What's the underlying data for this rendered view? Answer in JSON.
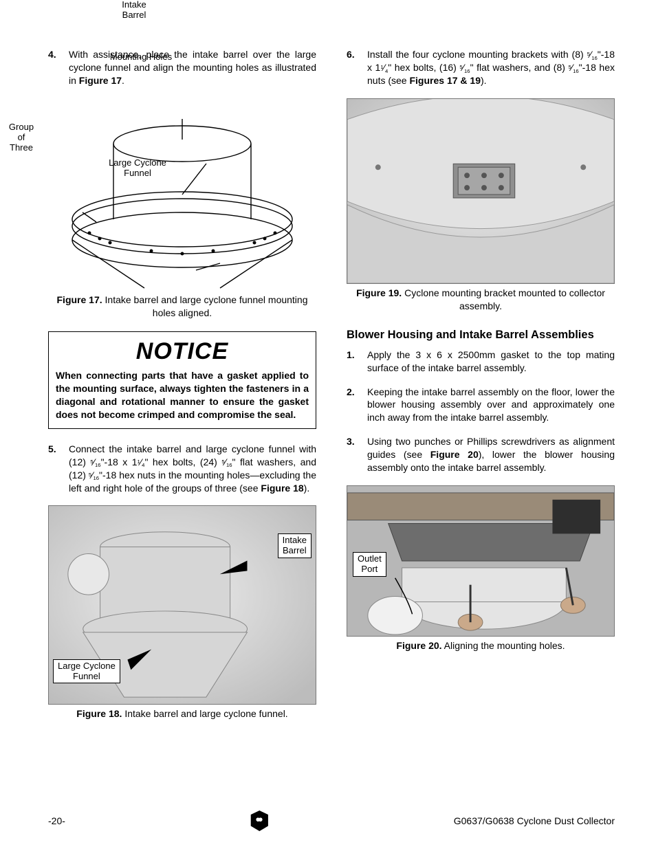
{
  "left": {
    "step4": {
      "num": "4.",
      "text_before": "With assistance, place the intake barrel over the large cyclone funnel and align the mounting holes as illustrated in ",
      "ref": "Figure 17",
      "text_after": "."
    },
    "fig17": {
      "labels": {
        "intake_barrel": "Intake\nBarrel",
        "mounting_holes": "Mounting Holes",
        "group_of_three": "Group\nof\nThree",
        "large_cyclone_funnel": "Large Cyclone\nFunnel"
      },
      "caption_bold": "Figure 17.",
      "caption_rest": " Intake barrel and large cyclone funnel mounting holes aligned."
    },
    "notice": {
      "title": "NOTICE",
      "body": "When connecting parts that have a gasket applied to the mounting surface, always tighten the fasteners in a diagonal and rotational manner to ensure the gasket does not become crimped and compromise the seal."
    },
    "step5": {
      "num": "5.",
      "html": "Connect the intake barrel and large cyclone funnel with (12) <span class='sup'>5</span>⁄<span class='sub'>16</span>\"-18 x 1<span class='sup'>1</span>⁄<span class='sub'>4</span>\" hex bolts, (24) <span class='sup'>5</span>⁄<span class='sub'>16</span>\" flat washers, and (12) <span class='sup'>5</span>⁄<span class='sub'>16</span>\"-18 hex nuts in the mounting holes—excluding the left and right hole of the groups of three (see <span class='bold'>Figure 18</span>)."
    },
    "fig18": {
      "labels": {
        "intake_barrel": "Intake\nBarrel",
        "large_cyclone_funnel": "Large Cyclone\nFunnel"
      },
      "caption_bold": "Figure 18.",
      "caption_rest": " Intake barrel and large cyclone funnel."
    }
  },
  "right": {
    "step6": {
      "num": "6.",
      "html": "Install the four cyclone mounting brackets with (8) <span class='sup'>5</span>⁄<span class='sub'>16</span>\"-18 x 1<span class='sup'>1</span>⁄<span class='sub'>4</span>\" hex bolts, (16) <span class='sup'>5</span>⁄<span class='sub'>16</span>\" flat washers, and (8) <span class='sup'>5</span>⁄<span class='sub'>16</span>\"-18 hex nuts (see <span class='bold'>Figures 17 &amp; 19</span>)."
    },
    "fig19": {
      "caption_bold": "Figure 19.",
      "caption_rest": " Cyclone mounting bracket mounted to collector assembly."
    },
    "heading": "Blower Housing and Intake Barrel Assemblies",
    "step1": {
      "num": "1.",
      "text": "Apply the 3 x 6 x 2500mm gasket to the top mating surface of the intake barrel assembly."
    },
    "step2": {
      "num": "2.",
      "text": "Keeping the intake barrel assembly on the floor, lower the blower housing assembly over and approximately one inch away from the intake barrel assembly."
    },
    "step3": {
      "num": "3.",
      "text_before": "Using two punches or Phillips screwdrivers as alignment guides (see ",
      "ref": "Figure 20",
      "text_after": "), lower the blower housing assembly onto the intake barrel assembly."
    },
    "fig20": {
      "labels": {
        "outlet_port": "Outlet\nPort"
      },
      "caption_bold": "Figure 20.",
      "caption_rest": " Aligning the mounting holes."
    }
  },
  "footer": {
    "page": "-20-",
    "doc": "G0637/G0638 Cyclone Dust Collector"
  }
}
